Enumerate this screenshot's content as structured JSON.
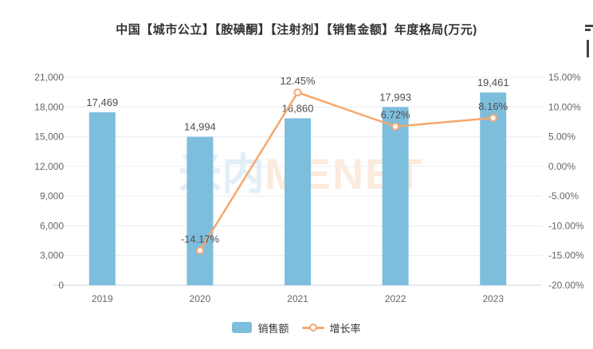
{
  "chart_data": {
    "type": "bar+line",
    "title": "中国【城市公立】【胺碘酮】【注射剂】【销售金额】年度格局(万元)",
    "categories": [
      "2019",
      "2020",
      "2021",
      "2022",
      "2023"
    ],
    "series": [
      {
        "name": "销售额",
        "type": "bar",
        "axis": "left",
        "color": "#7EBEDD",
        "values": [
          17469,
          14994,
          16860,
          17993,
          19461
        ],
        "labels": [
          "17,469",
          "14,994",
          "16,860",
          "17,993",
          "19,461"
        ]
      },
      {
        "name": "增长率",
        "type": "line",
        "axis": "right",
        "color": "#F5A86F",
        "values": [
          null,
          -14.17,
          12.45,
          6.72,
          8.16
        ],
        "labels": [
          "",
          "-14.17%",
          "12.45%",
          "6.72%",
          "8.16%"
        ]
      }
    ],
    "left_axis": {
      "min": 0,
      "max": 21000,
      "ticks": [
        "21,000",
        "18,000",
        "15,000",
        "12,000",
        "9,000",
        "6,000",
        "3,000",
        "0"
      ]
    },
    "right_axis": {
      "min": -20,
      "max": 15,
      "ticks": [
        "15.00%",
        "10.00%",
        "5.00%",
        "0.00%",
        "-5.00%",
        "-10.00%",
        "-15.00%",
        "-20.00%"
      ]
    },
    "legend": {
      "position": "bottom-center",
      "items": [
        "销售额",
        "增长率"
      ]
    },
    "grid": "horizontal-on",
    "label_color": "#4D4D4D",
    "axis_text_color": "#666666",
    "grid_color": "#E8EBF2"
  },
  "watermark": {
    "part1": "米内",
    "part2": "MENET"
  }
}
